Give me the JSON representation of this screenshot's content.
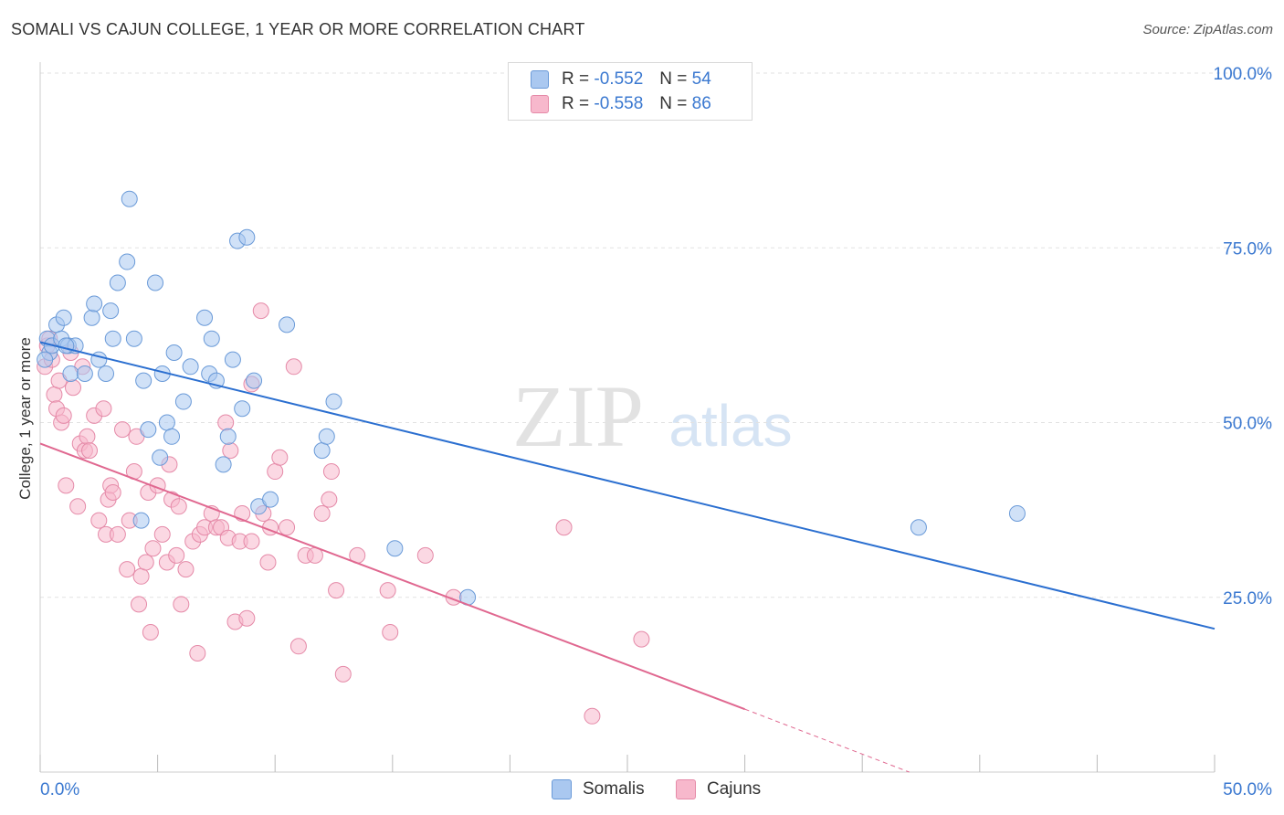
{
  "header": {
    "title": "SOMALI VS CAJUN COLLEGE, 1 YEAR OR MORE CORRELATION CHART",
    "source": "Source: ZipAtlas.com"
  },
  "watermark": {
    "zip": "ZIP",
    "atlas": "atlas"
  },
  "legend": {
    "r_label": "R =",
    "n_label": "N =",
    "somali": {
      "r": "-0.552",
      "n": "54"
    },
    "cajun": {
      "r": "-0.558",
      "n": "86"
    }
  },
  "bottom_legend": {
    "somali": "Somalis",
    "cajun": "Cajuns"
  },
  "colors": {
    "somali_fill": "#aac8f0",
    "somali_stroke": "#6a9ad8",
    "somali_line": "#2b6fd0",
    "cajun_fill": "#f7b8cc",
    "cajun_stroke": "#e58aa8",
    "cajun_line": "#e06890",
    "tick_label": "#3a78d0",
    "grid": "#e2e2e2"
  },
  "chart_data": {
    "type": "scatter",
    "title": "SOMALI VS CAJUN COLLEGE, 1 YEAR OR MORE CORRELATION CHART",
    "ylabel": "College, 1 year or more",
    "xlim": [
      0,
      50
    ],
    "ylim": [
      0,
      100
    ],
    "x_tick_labels": [
      {
        "value": 0,
        "label": "0.0%"
      },
      {
        "value": 50,
        "label": "50.0%"
      }
    ],
    "y_tick_labels": [
      {
        "value": 100,
        "label": "100.0%"
      },
      {
        "value": 75,
        "label": "75.0%"
      },
      {
        "value": 50,
        "label": "50.0%"
      },
      {
        "value": 25,
        "label": "25.0%"
      }
    ],
    "grid": true,
    "legend_position": "top-center",
    "series": [
      {
        "name": "Somalis",
        "color": "#aac8f0",
        "trend": {
          "x": [
            0,
            50
          ],
          "y": [
            61.5,
            20.5
          ],
          "dashed_to": null
        },
        "points": [
          [
            0.3,
            62
          ],
          [
            0.4,
            60
          ],
          [
            0.5,
            61
          ],
          [
            0.7,
            64
          ],
          [
            0.9,
            62
          ],
          [
            1.0,
            65
          ],
          [
            1.2,
            61
          ],
          [
            1.3,
            57
          ],
          [
            1.5,
            61
          ],
          [
            1.9,
            57
          ],
          [
            2.2,
            65
          ],
          [
            2.3,
            67
          ],
          [
            2.5,
            59
          ],
          [
            2.8,
            57
          ],
          [
            3.0,
            66
          ],
          [
            3.1,
            62
          ],
          [
            3.3,
            70
          ],
          [
            3.7,
            73
          ],
          [
            3.8,
            82
          ],
          [
            4.0,
            62
          ],
          [
            4.3,
            36
          ],
          [
            4.4,
            56
          ],
          [
            4.6,
            49
          ],
          [
            4.9,
            70
          ],
          [
            5.1,
            45
          ],
          [
            5.2,
            57
          ],
          [
            5.4,
            50
          ],
          [
            5.6,
            48
          ],
          [
            5.7,
            60
          ],
          [
            6.1,
            53
          ],
          [
            6.4,
            58
          ],
          [
            7.0,
            65
          ],
          [
            7.2,
            57
          ],
          [
            7.3,
            62
          ],
          [
            7.5,
            56
          ],
          [
            7.8,
            44
          ],
          [
            8.0,
            48
          ],
          [
            8.2,
            59
          ],
          [
            8.4,
            76
          ],
          [
            8.6,
            52
          ],
          [
            8.8,
            76.5
          ],
          [
            9.1,
            56
          ],
          [
            9.3,
            38
          ],
          [
            9.8,
            39
          ],
          [
            10.5,
            64
          ],
          [
            12.0,
            46
          ],
          [
            12.2,
            48
          ],
          [
            12.5,
            53
          ],
          [
            15.1,
            32
          ],
          [
            18.2,
            25
          ],
          [
            37.4,
            35
          ],
          [
            41.6,
            37
          ],
          [
            1.1,
            61
          ],
          [
            0.2,
            59
          ]
        ]
      },
      {
        "name": "Cajuns",
        "color": "#f7b8cc",
        "trend": {
          "x": [
            0,
            30
          ],
          "y": [
            47,
            9
          ],
          "dashed_to": [
            37,
            0
          ]
        },
        "points": [
          [
            0.2,
            58
          ],
          [
            0.3,
            61
          ],
          [
            0.4,
            62
          ],
          [
            0.5,
            59
          ],
          [
            0.6,
            54
          ],
          [
            0.7,
            52
          ],
          [
            0.8,
            56
          ],
          [
            0.9,
            50
          ],
          [
            1.0,
            51
          ],
          [
            1.1,
            41
          ],
          [
            1.3,
            60
          ],
          [
            1.4,
            55
          ],
          [
            1.6,
            38
          ],
          [
            1.7,
            47
          ],
          [
            1.8,
            58
          ],
          [
            1.9,
            46
          ],
          [
            2.0,
            48
          ],
          [
            2.1,
            46
          ],
          [
            2.3,
            51
          ],
          [
            2.5,
            36
          ],
          [
            2.7,
            52
          ],
          [
            2.8,
            34
          ],
          [
            2.9,
            39
          ],
          [
            3.0,
            41
          ],
          [
            3.1,
            40
          ],
          [
            3.3,
            34
          ],
          [
            3.5,
            49
          ],
          [
            3.7,
            29
          ],
          [
            3.8,
            36
          ],
          [
            4.0,
            43
          ],
          [
            4.1,
            48
          ],
          [
            4.2,
            24
          ],
          [
            4.3,
            28
          ],
          [
            4.5,
            30
          ],
          [
            4.6,
            40
          ],
          [
            4.7,
            20
          ],
          [
            4.8,
            32
          ],
          [
            5.0,
            41
          ],
          [
            5.2,
            34
          ],
          [
            5.4,
            30
          ],
          [
            5.5,
            44
          ],
          [
            5.6,
            39
          ],
          [
            5.8,
            31
          ],
          [
            5.9,
            38
          ],
          [
            6.0,
            24
          ],
          [
            6.2,
            29
          ],
          [
            6.5,
            33
          ],
          [
            6.7,
            17
          ],
          [
            6.8,
            34
          ],
          [
            7.0,
            35
          ],
          [
            7.3,
            37
          ],
          [
            7.5,
            35
          ],
          [
            7.7,
            35
          ],
          [
            7.9,
            50
          ],
          [
            8.0,
            33.5
          ],
          [
            8.1,
            46
          ],
          [
            8.3,
            21.5
          ],
          [
            8.5,
            33
          ],
          [
            8.6,
            37
          ],
          [
            8.8,
            22
          ],
          [
            9.0,
            33
          ],
          [
            9.4,
            66
          ],
          [
            9.5,
            37
          ],
          [
            9.7,
            30
          ],
          [
            9.8,
            35
          ],
          [
            10.0,
            43
          ],
          [
            10.2,
            45
          ],
          [
            10.5,
            35
          ],
          [
            10.8,
            58
          ],
          [
            11.0,
            18
          ],
          [
            11.3,
            31
          ],
          [
            11.7,
            31
          ],
          [
            12.0,
            37
          ],
          [
            12.3,
            39
          ],
          [
            12.4,
            43
          ],
          [
            12.6,
            26
          ],
          [
            12.9,
            14
          ],
          [
            13.5,
            31
          ],
          [
            14.8,
            26
          ],
          [
            14.9,
            20
          ],
          [
            16.4,
            31
          ],
          [
            17.6,
            25
          ],
          [
            22.3,
            35
          ],
          [
            23.5,
            8
          ],
          [
            25.6,
            19
          ],
          [
            9.0,
            55.5
          ]
        ]
      }
    ]
  }
}
